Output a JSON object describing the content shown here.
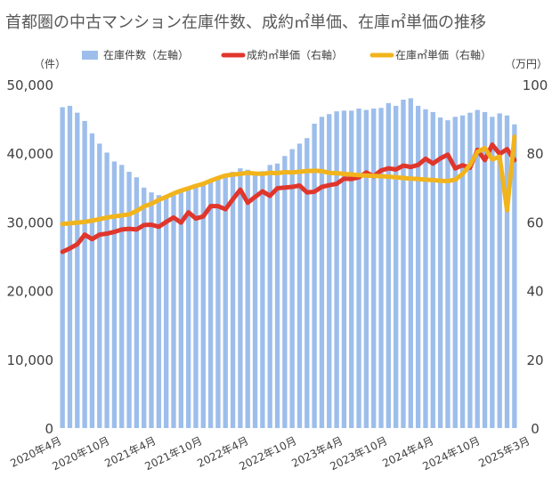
{
  "chart_data": {
    "type": "bar+line",
    "title": "首都圏の中古マンション在庫件数、成約㎡単価、在庫㎡単価の推移",
    "left_axis": {
      "unit": "（件）",
      "ylim": [
        0,
        50000
      ],
      "ticks": [
        "0",
        "10,000",
        "20,000",
        "30,000",
        "40,000",
        "50,000"
      ]
    },
    "right_axis": {
      "unit": "（万円）",
      "ylim": [
        0,
        100
      ],
      "ticks": [
        "0",
        "20",
        "40",
        "60",
        "80",
        "100"
      ]
    },
    "x_labels": [
      "2020年4月",
      "2020年10月",
      "2021年4月",
      "2021年10月",
      "2022年4月",
      "2022年10月",
      "2023年4月",
      "2023年10月",
      "2024年4月",
      "2024年10月",
      "2025年3月"
    ],
    "legend": [
      {
        "label": "在庫件数（左軸）",
        "color": "#9dbeeb",
        "kind": "bar"
      },
      {
        "label": "成約㎡単価（右軸）",
        "color": "#e0362c",
        "kind": "line"
      },
      {
        "label": "在庫㎡単価（右軸）",
        "color": "#f2b41c",
        "kind": "line"
      }
    ],
    "series": [
      {
        "name": "在庫件数（左軸）",
        "axis": "left",
        "color": "#9dbeeb",
        "values": [
          46700,
          46900,
          45900,
          44700,
          42900,
          41400,
          40100,
          38800,
          38300,
          37300,
          36500,
          35000,
          34300,
          33900,
          33600,
          33900,
          34500,
          34900,
          35200,
          35500,
          35900,
          36400,
          36800,
          37300,
          37800,
          37600,
          37200,
          37400,
          38300,
          38500,
          39600,
          40600,
          41400,
          42200,
          44300,
          45300,
          45700,
          46100,
          46200,
          46200,
          46500,
          46300,
          46500,
          46600,
          47300,
          46900,
          47800,
          48000,
          46900,
          46400,
          46000,
          45200,
          44800,
          45300,
          45500,
          45900,
          46300,
          46000,
          45300,
          45800,
          45500,
          44200
        ]
      },
      {
        "name": "成約㎡単価（右軸）",
        "axis": "right",
        "color": "#e0362c",
        "values": [
          51.3,
          52.3,
          53.5,
          56.3,
          55.0,
          56.3,
          56.6,
          57.1,
          57.8,
          58.0,
          57.8,
          59.1,
          59.2,
          58.6,
          60.0,
          61.3,
          59.8,
          62.8,
          61.0,
          61.6,
          64.6,
          64.6,
          63.7,
          66.6,
          69.4,
          65.6,
          67.3,
          68.9,
          67.6,
          69.8,
          70.0,
          70.2,
          70.6,
          68.6,
          68.8,
          70.2,
          70.7,
          71.1,
          72.6,
          72.5,
          73.0,
          74.4,
          73.3,
          75.0,
          75.6,
          75.3,
          76.4,
          76.0,
          76.6,
          78.4,
          77.0,
          78.5,
          79.6,
          75.6,
          76.5,
          75.8,
          81.0,
          78.0,
          82.5,
          79.8,
          81.2,
          78.0
        ]
      },
      {
        "name": "在庫㎡単価（右軸）",
        "axis": "right",
        "color": "#f2b41c",
        "values": [
          59.4,
          59.6,
          59.8,
          60.0,
          60.4,
          60.8,
          61.3,
          61.6,
          61.9,
          62.2,
          63.2,
          64.5,
          65.3,
          66.4,
          67.3,
          68.3,
          69.1,
          69.8,
          70.5,
          71.1,
          72.0,
          72.8,
          73.5,
          73.8,
          74.0,
          74.3,
          74.1,
          74.0,
          74.3,
          74.2,
          74.5,
          74.4,
          74.6,
          74.8,
          74.9,
          74.8,
          74.3,
          74.2,
          74.0,
          73.8,
          73.6,
          73.5,
          73.4,
          73.3,
          73.2,
          73.0,
          72.8,
          72.6,
          72.5,
          72.3,
          72.2,
          72.0,
          71.9,
          72.3,
          74.0,
          76.6,
          80.4,
          81.5,
          78.2,
          79.0,
          63.4,
          84.8
        ]
      }
    ],
    "grid": false,
    "legend_placement": "top"
  }
}
